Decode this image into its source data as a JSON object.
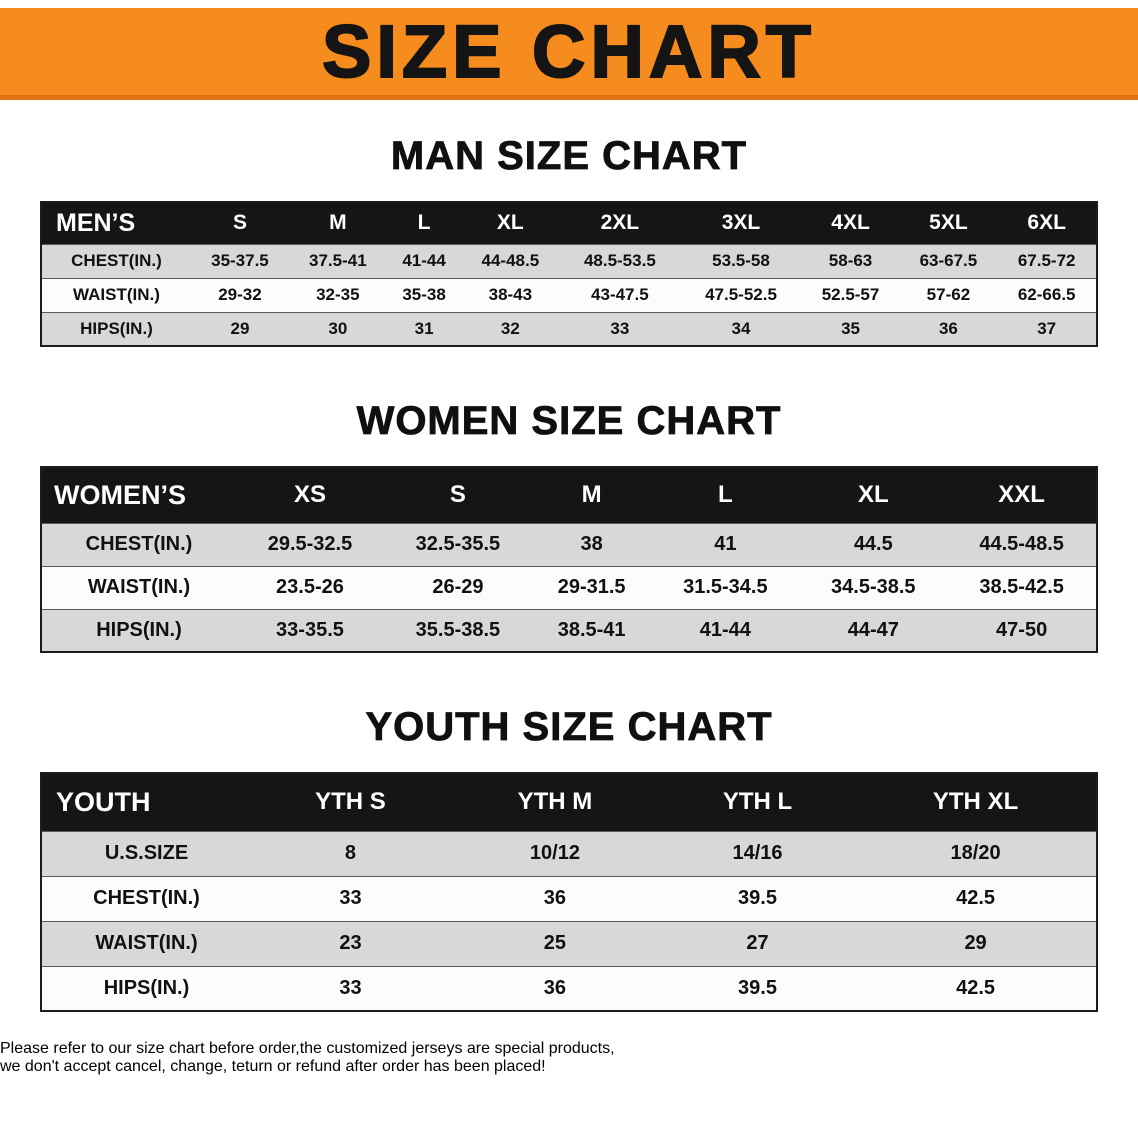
{
  "banner": {
    "title": "SIZE CHART"
  },
  "sections": [
    {
      "name": "mens",
      "heading": "MAN SIZE CHART",
      "table": {
        "header": [
          "MEN’S",
          "S",
          "M",
          "L",
          "XL",
          "2XL",
          "3XL",
          "4XL",
          "5XL",
          "6XL"
        ],
        "rows": [
          [
            "CHEST(IN.)",
            "35-37.5",
            "37.5-41",
            "41-44",
            "44-48.5",
            "48.5-53.5",
            "53.5-58",
            "58-63",
            "63-67.5",
            "67.5-72"
          ],
          [
            "WAIST(IN.)",
            "29-32",
            "32-35",
            "35-38",
            "38-43",
            "43-47.5",
            "47.5-52.5",
            "52.5-57",
            "57-62",
            "62-66.5"
          ],
          [
            "HIPS(IN.)",
            "29",
            "30",
            "31",
            "32",
            "33",
            "34",
            "35",
            "36",
            "37"
          ]
        ]
      }
    },
    {
      "name": "womens",
      "heading": "WOMEN SIZE CHART",
      "table": {
        "header": [
          "WOMEN’S",
          "XS",
          "S",
          "M",
          "L",
          "XL",
          "XXL"
        ],
        "rows": [
          [
            "CHEST(IN.)",
            "29.5-32.5",
            "32.5-35.5",
            "38",
            "41",
            "44.5",
            "44.5-48.5"
          ],
          [
            "WAIST(IN.)",
            "23.5-26",
            "26-29",
            "29-31.5",
            "31.5-34.5",
            "34.5-38.5",
            "38.5-42.5"
          ],
          [
            "HIPS(IN.)",
            "33-35.5",
            "35.5-38.5",
            "38.5-41",
            "41-44",
            "44-47",
            "47-50"
          ]
        ]
      }
    },
    {
      "name": "youth",
      "heading": "YOUTH SIZE CHART",
      "table": {
        "header": [
          "YOUTH",
          "YTH S",
          "YTH M",
          "YTH L",
          "YTH XL"
        ],
        "rows": [
          [
            "U.S.SIZE",
            "8",
            "10/12",
            "14/16",
            "18/20"
          ],
          [
            "CHEST(IN.)",
            "33",
            "36",
            "39.5",
            "42.5"
          ],
          [
            "WAIST(IN.)",
            "23",
            "25",
            "27",
            "29"
          ],
          [
            "HIPS(IN.)",
            "33",
            "36",
            "39.5",
            "42.5"
          ]
        ]
      }
    }
  ],
  "disclaimer": {
    "line1": "Please refer to our size chart before order,the customized jerseys are special products,",
    "line2": "we don't accept cancel, change, teturn or refund after order has been placed!"
  },
  "colors": {
    "banner_orange": "#f68b1e",
    "table_header_black": "#151515",
    "row_gray": "#d8d8d8",
    "disclaimer_red": "#cd0b0b"
  }
}
